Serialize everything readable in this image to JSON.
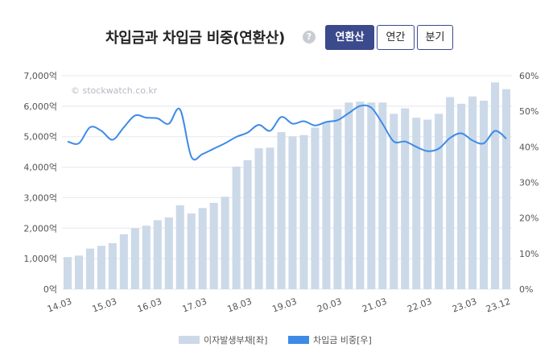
{
  "header": {
    "title": "차입금과 차입금 비중(연환산)",
    "help_icon": "?",
    "period_buttons": [
      "연환산",
      "연간",
      "분기"
    ],
    "active_button": 0
  },
  "watermark": "© stockwatch.co.kr",
  "colors": {
    "bar": "#ccd9e8",
    "line": "#3d8be6",
    "active_button": "#3b4a8c"
  },
  "chart_data": {
    "type": "bar+line",
    "left_axis": {
      "ticks": [
        "0억",
        "1,000억",
        "2,000억",
        "3,000억",
        "4,000억",
        "5,000억",
        "6,000억",
        "7,000억"
      ],
      "range": [
        0,
        7000
      ]
    },
    "right_axis": {
      "ticks": [
        "0%",
        "10%",
        "20%",
        "30%",
        "40%",
        "50%",
        "60%"
      ],
      "range": [
        0,
        60
      ]
    },
    "x_ticks": [
      "14.03",
      "15.03",
      "16.03",
      "17.03",
      "18.03",
      "19.03",
      "20.03",
      "21.03",
      "22.03",
      "23.03",
      "23.12"
    ],
    "grid": true,
    "legend_position": "bottom",
    "series": [
      {
        "name": "이자발생부채[좌]",
        "type": "bar",
        "axis": "left",
        "values": [
          1050,
          1100,
          1330,
          1420,
          1510,
          1800,
          2000,
          2080,
          2260,
          2350,
          2750,
          2480,
          2660,
          2830,
          3030,
          4020,
          4230,
          4620,
          4640,
          5150,
          5010,
          5050,
          5300,
          5490,
          5900,
          6120,
          6150,
          6120,
          6120,
          5750,
          5930,
          5620,
          5560,
          5750,
          6300,
          6080,
          6320,
          6180,
          6780,
          6560
        ]
      },
      {
        "name": "차입금 비중[우]",
        "type": "line",
        "axis": "right",
        "values": [
          41.5,
          41.0,
          45.5,
          44.5,
          42.0,
          45.5,
          48.8,
          48.2,
          48.0,
          46.5,
          50.5,
          37.2,
          38.0,
          39.5,
          41.0,
          42.8,
          44.0,
          46.2,
          44.5,
          48.4,
          46.5,
          47.2,
          46.0,
          47.0,
          47.5,
          49.5,
          51.5,
          51.0,
          46.5,
          41.5,
          41.5,
          40.0,
          38.8,
          39.5,
          42.5,
          43.8,
          41.8,
          41.0,
          44.5,
          42.3
        ]
      }
    ]
  },
  "legend": [
    {
      "label": "이자발생부채[좌]",
      "color": "#ccd9e8"
    },
    {
      "label": "차입금 비중[우]",
      "color": "#3d8be6"
    }
  ]
}
